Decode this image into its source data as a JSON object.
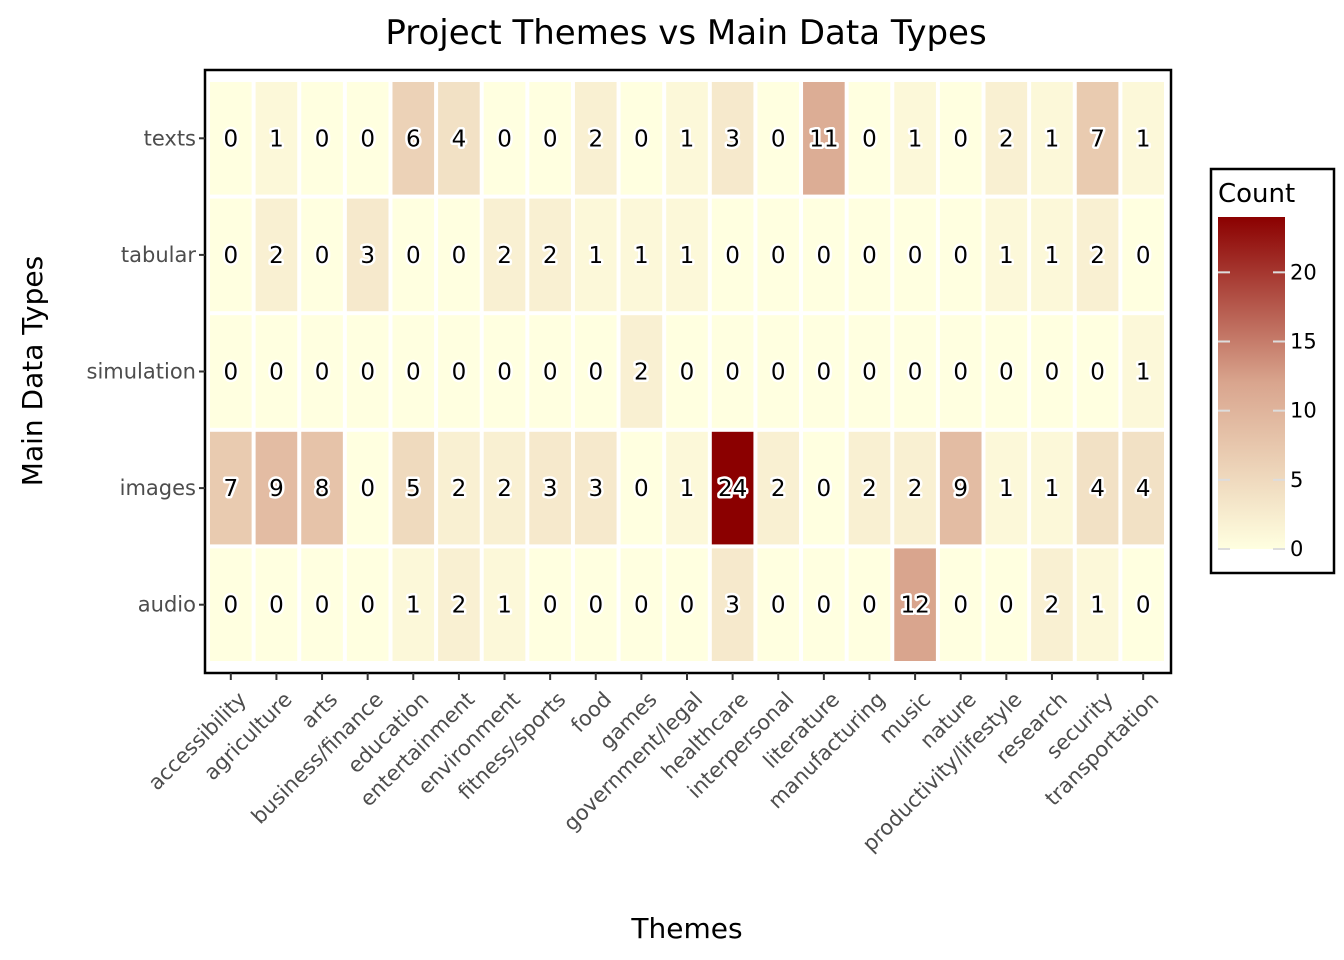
{
  "chart_data": {
    "type": "heatmap",
    "title": "Project Themes vs Main Data Types",
    "xlabel": "Themes",
    "ylabel": "Main Data Types",
    "x_categories": [
      "accessibility",
      "agriculture",
      "arts",
      "business/finance",
      "education",
      "entertainment",
      "environment",
      "fitness/sports",
      "food",
      "games",
      "government/legal",
      "healthcare",
      "interpersonal",
      "literature",
      "manufacturing",
      "music",
      "nature",
      "productivity/lifestyle",
      "research",
      "security",
      "transportation"
    ],
    "y_categories": [
      "texts",
      "tabular",
      "simulation",
      "images",
      "audio"
    ],
    "values": [
      [
        0,
        1,
        0,
        0,
        6,
        4,
        0,
        0,
        2,
        0,
        1,
        3,
        0,
        11,
        0,
        1,
        0,
        2,
        1,
        7,
        1
      ],
      [
        0,
        2,
        0,
        3,
        0,
        0,
        2,
        2,
        1,
        1,
        1,
        0,
        0,
        0,
        0,
        0,
        0,
        1,
        1,
        2,
        0
      ],
      [
        0,
        0,
        0,
        0,
        0,
        0,
        0,
        0,
        0,
        2,
        0,
        0,
        0,
        0,
        0,
        0,
        0,
        0,
        0,
        0,
        1
      ],
      [
        7,
        9,
        8,
        0,
        5,
        2,
        2,
        3,
        3,
        0,
        1,
        24,
        2,
        0,
        2,
        2,
        9,
        1,
        1,
        4,
        4
      ],
      [
        0,
        0,
        0,
        0,
        1,
        2,
        1,
        0,
        0,
        0,
        0,
        3,
        0,
        0,
        0,
        12,
        0,
        0,
        2,
        1,
        0
      ]
    ],
    "color_scale": {
      "low": "#ffffe0",
      "mid": "#d9a58e",
      "high": "#8b0000",
      "min": 0,
      "max": 24
    },
    "legend": {
      "title": "Count",
      "ticks": [
        0,
        5,
        10,
        15,
        20
      ],
      "position": "right"
    }
  }
}
